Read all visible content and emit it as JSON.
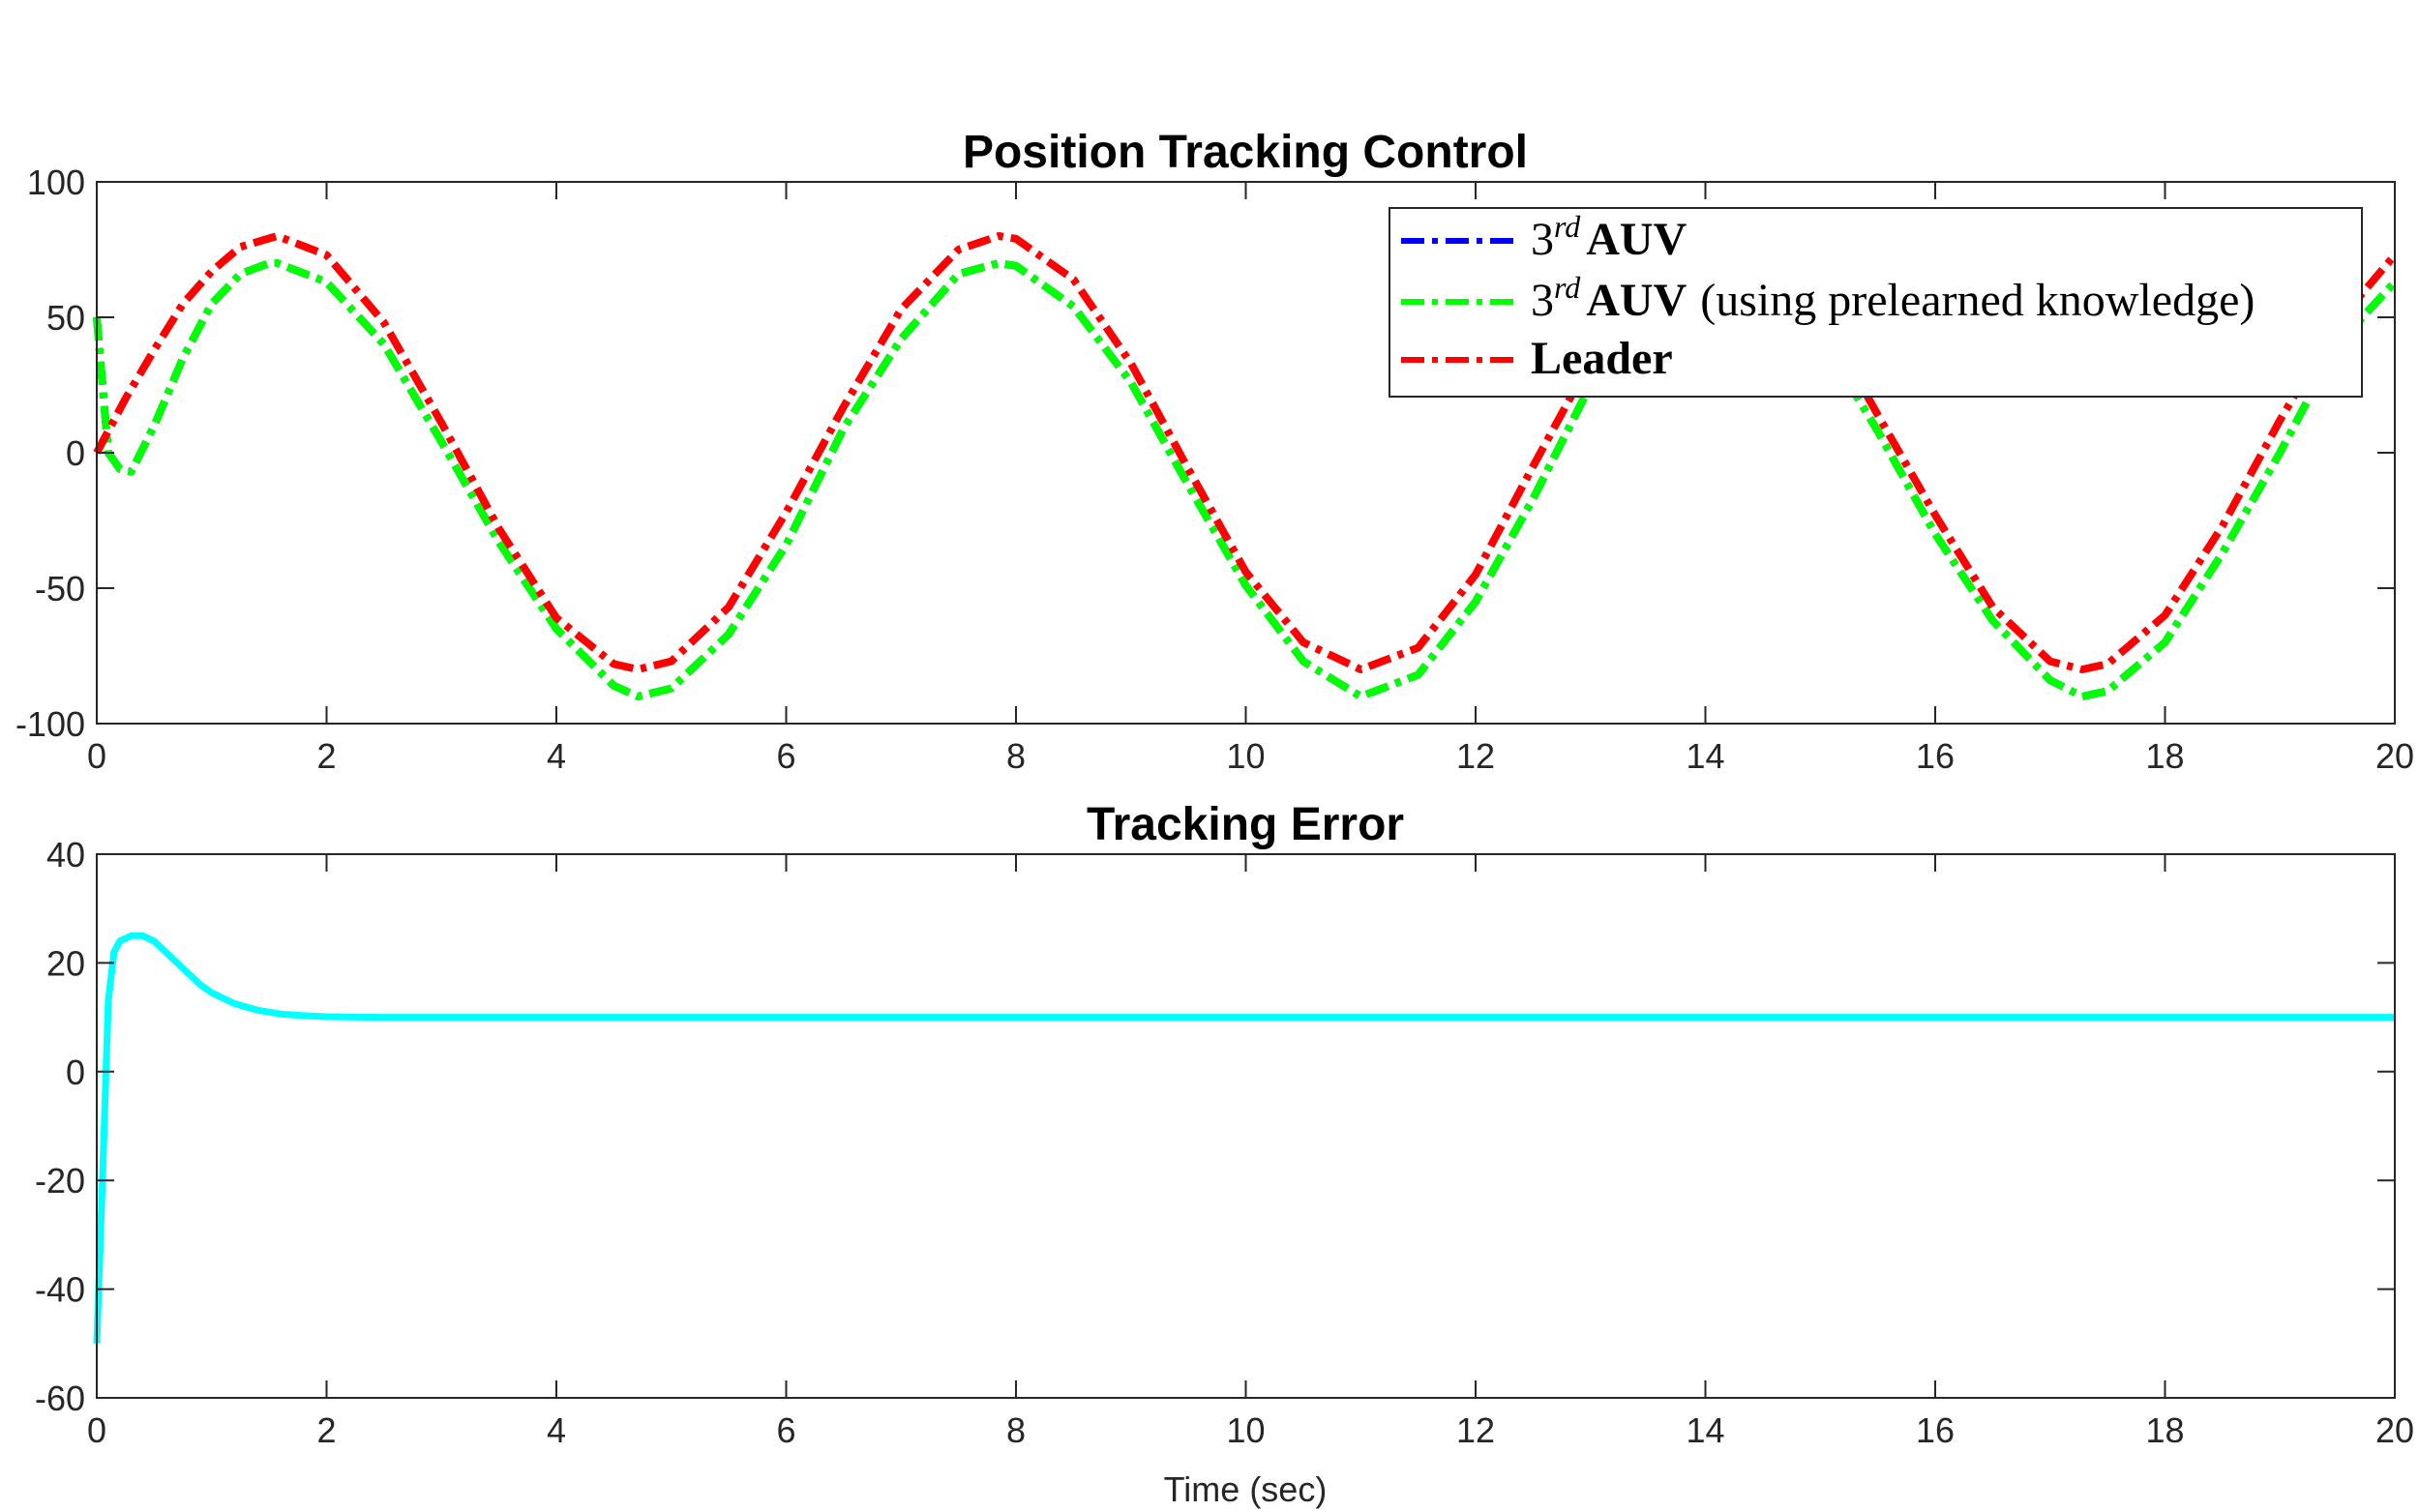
{
  "chart_data": [
    {
      "type": "line",
      "title": "Position Tracking Control",
      "xlabel": "",
      "ylabel": "",
      "xlim": [
        0,
        20
      ],
      "ylim": [
        -100,
        100
      ],
      "xticks": [
        0,
        2,
        4,
        6,
        8,
        10,
        12,
        14,
        16,
        18,
        20
      ],
      "yticks": [
        -100,
        -50,
        0,
        50,
        100
      ],
      "grid": false,
      "legend_position": "top-right",
      "series": [
        {
          "name_parts": [
            "3",
            "rd",
            "AUV",
            ""
          ],
          "color": "#0000ff",
          "line_style": "dash-dot",
          "x": [
            0,
            0.1,
            0.2,
            0.3,
            0.5,
            0.75,
            1.0,
            1.25,
            1.5,
            1.57,
            2.0,
            2.5,
            3.0,
            3.5,
            4.0,
            4.5,
            4.71,
            5.0,
            5.5,
            6.0,
            6.5,
            7.0,
            7.5,
            7.85,
            8.0,
            8.5,
            9.0,
            9.5,
            10.0,
            10.5,
            11.0,
            11.5,
            12.0,
            12.5,
            13.0,
            13.5,
            14.0,
            14.14,
            14.5,
            15.0,
            15.5,
            16.0,
            16.5,
            17.0,
            17.28,
            17.5,
            18.0,
            18.5,
            19.0,
            19.5,
            20.0
          ],
          "values": [
            50,
            0,
            -6,
            -7,
            10,
            35,
            55,
            66,
            70,
            70,
            63,
            40,
            4,
            -33,
            -65,
            -86,
            -90,
            -87,
            -67,
            -34,
            9,
            42,
            66,
            70,
            69,
            54,
            26,
            -12,
            -49,
            -77,
            -90,
            -82,
            -55,
            -17,
            25,
            56,
            69,
            70,
            65,
            43,
            8,
            -30,
            -62,
            -84,
            -90,
            -88,
            -70,
            -37,
            0,
            40,
            63
          ]
        },
        {
          "name_parts": [
            "3",
            "rd",
            "AUV",
            "(using prelearned knowledge)"
          ],
          "color": "#00ff00",
          "line_style": "dash-dot",
          "x": [
            0,
            0.1,
            0.2,
            0.3,
            0.5,
            0.75,
            1.0,
            1.25,
            1.5,
            1.57,
            2.0,
            2.5,
            3.0,
            3.5,
            4.0,
            4.5,
            4.71,
            5.0,
            5.5,
            6.0,
            6.5,
            7.0,
            7.5,
            7.85,
            8.0,
            8.5,
            9.0,
            9.5,
            10.0,
            10.5,
            11.0,
            11.5,
            12.0,
            12.5,
            13.0,
            13.5,
            14.0,
            14.14,
            14.5,
            15.0,
            15.5,
            16.0,
            16.5,
            17.0,
            17.28,
            17.5,
            18.0,
            18.5,
            19.0,
            19.5,
            20.0
          ],
          "values": [
            50,
            0,
            -6,
            -7,
            10,
            35,
            55,
            66,
            70,
            70,
            63,
            40,
            4,
            -33,
            -65,
            -86,
            -90,
            -87,
            -67,
            -34,
            9,
            42,
            66,
            70,
            69,
            54,
            26,
            -12,
            -49,
            -77,
            -90,
            -82,
            -55,
            -17,
            25,
            56,
            69,
            70,
            65,
            43,
            8,
            -30,
            -62,
            -84,
            -90,
            -88,
            -70,
            -37,
            0,
            40,
            63
          ]
        },
        {
          "name_parts": [
            "",
            "",
            "Leader",
            ""
          ],
          "color": "#ff0000",
          "line_style": "dash-dot",
          "x": [
            0,
            0.25,
            0.5,
            0.75,
            1.0,
            1.25,
            1.57,
            2.0,
            2.5,
            3.0,
            3.5,
            4.0,
            4.5,
            4.71,
            5.0,
            5.5,
            6.0,
            6.5,
            7.0,
            7.5,
            7.85,
            8.0,
            8.5,
            9.0,
            9.5,
            10.0,
            10.5,
            11.0,
            11.5,
            12.0,
            12.5,
            13.0,
            13.5,
            14.0,
            14.14,
            14.5,
            15.0,
            15.5,
            16.0,
            16.5,
            17.0,
            17.28,
            17.5,
            18.0,
            18.5,
            19.0,
            19.5,
            20.0
          ],
          "values": [
            0,
            20,
            38,
            55,
            67,
            76,
            80,
            73,
            48,
            11,
            -28,
            -61,
            -78,
            -80,
            -77,
            -57,
            -22,
            17,
            53,
            75,
            80,
            79,
            64,
            33,
            -6,
            -44,
            -70,
            -80,
            -72,
            -45,
            -5,
            34,
            65,
            80,
            80,
            75,
            52,
            14,
            -23,
            -57,
            -77,
            -80,
            -78,
            -60,
            -27,
            12,
            48,
            73
          ]
        }
      ]
    },
    {
      "type": "line",
      "title": "Tracking Error",
      "xlabel": "Time (sec)",
      "ylabel": "",
      "xlim": [
        0,
        20
      ],
      "ylim": [
        -60,
        40
      ],
      "xticks": [
        0,
        2,
        4,
        6,
        8,
        10,
        12,
        14,
        16,
        18,
        20
      ],
      "yticks": [
        -60,
        -40,
        -20,
        0,
        20,
        40
      ],
      "grid": false,
      "series": [
        {
          "color": "#00ffff",
          "line_style": "solid",
          "x": [
            0,
            0.05,
            0.1,
            0.15,
            0.2,
            0.3,
            0.4,
            0.5,
            0.6,
            0.7,
            0.8,
            0.9,
            1.0,
            1.2,
            1.4,
            1.6,
            1.8,
            2.0,
            2.5,
            3.0,
            4.0,
            6.0,
            8.0,
            10.0,
            12.0,
            14.0,
            16.0,
            18.0,
            20.0
          ],
          "values": [
            -50,
            -20,
            13,
            22,
            24,
            25,
            25,
            24,
            22,
            20,
            18,
            16,
            14.5,
            12.5,
            11.3,
            10.6,
            10.3,
            10.1,
            10,
            10,
            10,
            10,
            10,
            10,
            10,
            10,
            10,
            10,
            10
          ]
        }
      ]
    }
  ]
}
